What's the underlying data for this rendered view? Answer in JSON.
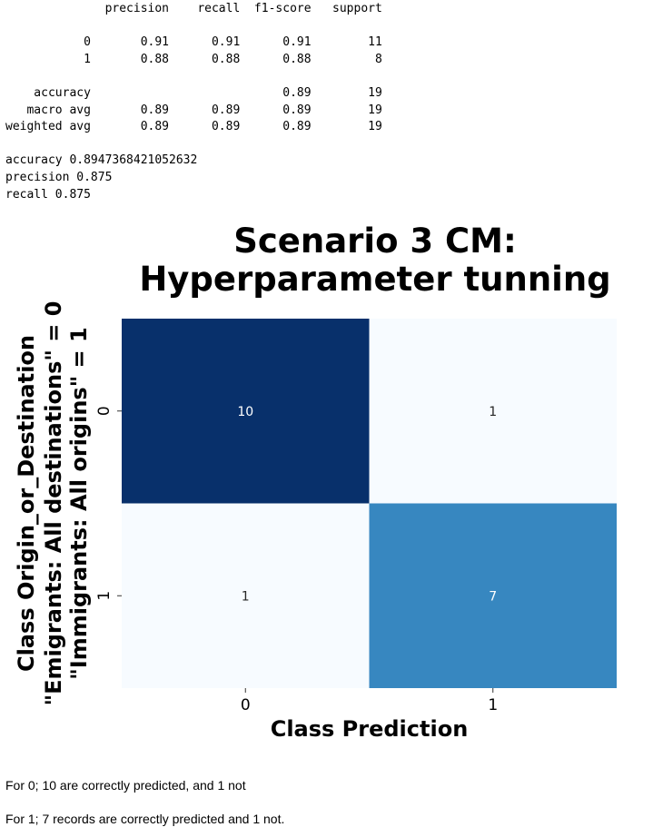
{
  "report": {
    "lines": [
      "              precision    recall  f1-score   support",
      "",
      "           0       0.91      0.91      0.91        11",
      "           1       0.88      0.88      0.88         8",
      "",
      "    accuracy                           0.89        19",
      "   macro avg       0.89      0.89      0.89        19",
      "weighted avg       0.89      0.89      0.89        19",
      "",
      "accuracy 0.8947368421052632",
      "precision 0.875",
      "recall 0.875"
    ]
  },
  "chart_data": {
    "type": "heatmap",
    "title": "Scenario 3 CM:\nHyperparameter tunning",
    "title_lines": [
      "Scenario 3 CM:",
      "Hyperparameter tunning"
    ],
    "xlabel": "Class Prediction",
    "ylabel_lines": [
      "Class Origin_or_Destination",
      "\"Emigrants: All destinations\" = 0",
      "\"Immigrants: All origins\" = 1"
    ],
    "x_categories": [
      "0",
      "1"
    ],
    "y_categories": [
      "0",
      "1"
    ],
    "values": [
      [
        10,
        1
      ],
      [
        1,
        7
      ]
    ],
    "colormap": "Blues",
    "colorbar": false,
    "annotations": true
  },
  "notes": [
    "For 0; 10 are correctly predicted, and 1 not",
    "For 1; 7 records are correctly predicted and 1 not."
  ]
}
